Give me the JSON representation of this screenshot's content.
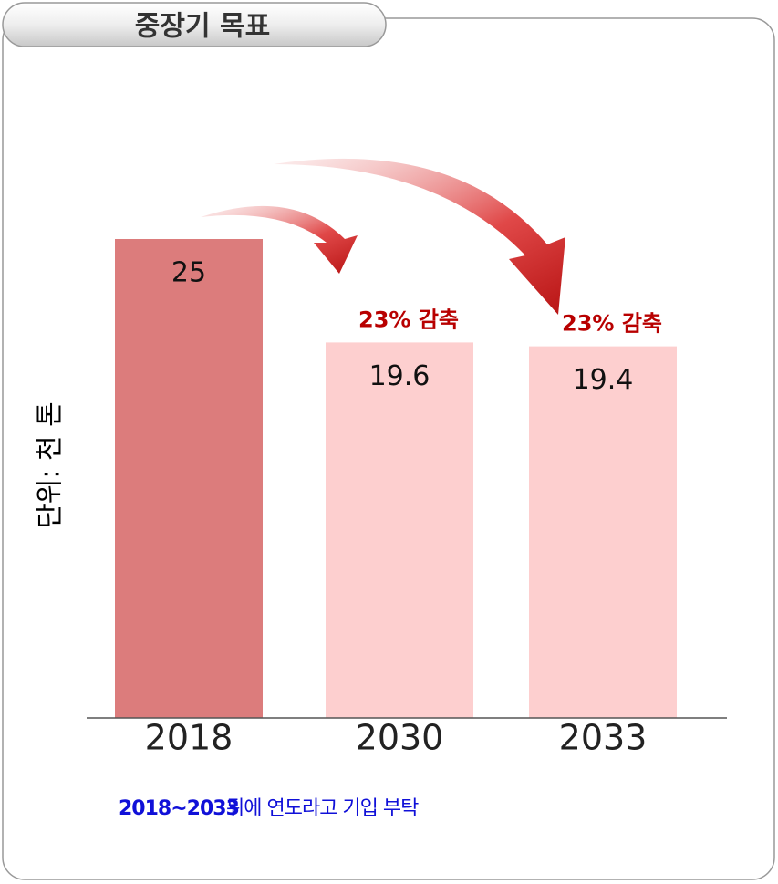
{
  "chart_data": {
    "type": "bar",
    "title": "중장기 목표",
    "y_label": "단위: 천 톤",
    "categories": [
      "2018",
      "2030",
      "2033"
    ],
    "values": [
      25,
      19.6,
      19.4
    ],
    "colors": [
      "#dc7c7c",
      "#fdcfcf",
      "#fdcfcf"
    ],
    "annotations": [
      "23% 감축",
      "23% 감축"
    ],
    "footnote": {
      "highlight": "2018~2033",
      "text": "뒤에 연도라고 기입 부탁"
    }
  }
}
